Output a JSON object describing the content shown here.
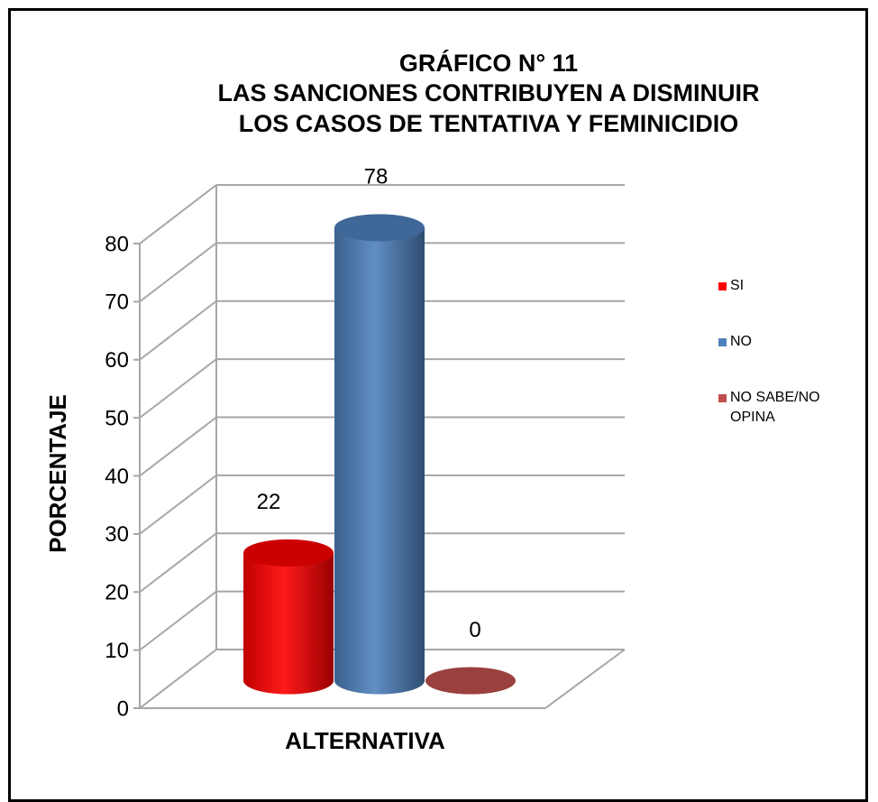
{
  "chart_data": {
    "type": "bar3d",
    "title": [
      "GRÁFICO N° 11",
      "LAS SANCIONES CONTRIBUYEN A DISMINUIR",
      "LOS CASOS DE TENTATIVA Y FEMINICIDIO"
    ],
    "x_label": "ALTERNATIVA",
    "y_label": "PORCENTAJE",
    "series": [
      {
        "name": "SI",
        "color": "#ff0000",
        "values": [
          22
        ]
      },
      {
        "name": "NO",
        "color": "#4f81bd",
        "values": [
          78
        ]
      },
      {
        "name": "NO SABE/NO OPINA",
        "color": "#c0504d",
        "values": [
          0
        ]
      }
    ],
    "ylim": [
      0,
      80
    ],
    "yticks": [
      0,
      10,
      20,
      30,
      40,
      50,
      60,
      70,
      80
    ],
    "grid": true,
    "legend": "right"
  }
}
